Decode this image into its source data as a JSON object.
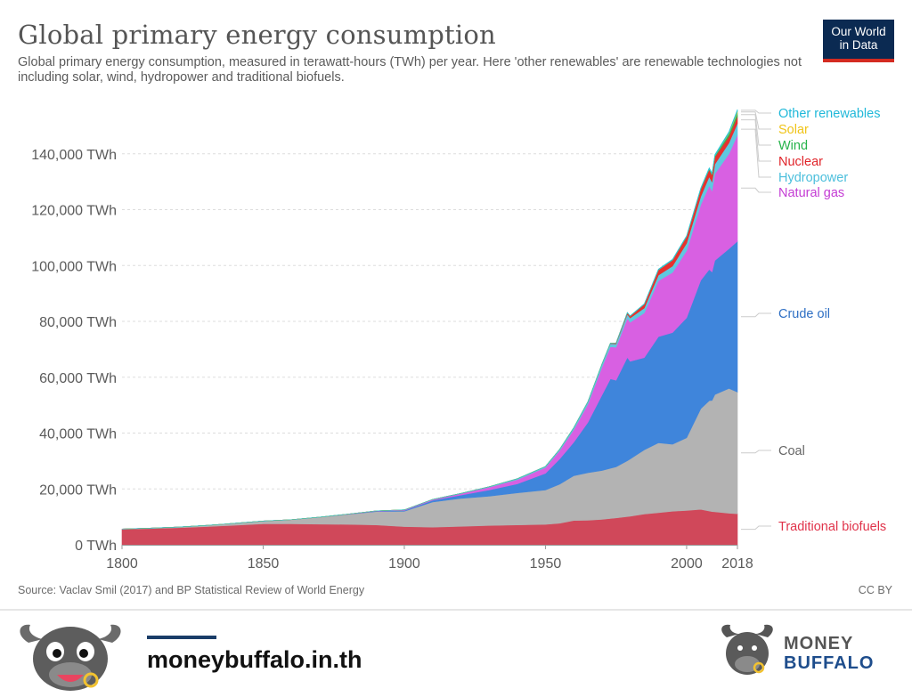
{
  "chart": {
    "title": "Global primary energy consumption",
    "subtitle": "Global primary energy consumption, measured in terawatt-hours (TWh) per year. Here 'other renewables' are renewable technologies not including solar, wind, hydropower and traditional biofuels.",
    "source": "Source: Vaclav Smil (2017) and BP Statistical Review of World Energy",
    "license": "CC BY"
  },
  "logo": {
    "line1": "Our World",
    "line2": "in Data",
    "bg": "#0b2a52",
    "accent": "#d42b21"
  },
  "footer": {
    "url": "moneybuffalo.in.th",
    "brand_top": "MONEY",
    "brand_bottom": "BUFFALO",
    "mascot_icon": "buffalo-mascot-icon",
    "accent": "#1a3d68"
  },
  "chart_data": {
    "type": "area",
    "stacked": true,
    "title": "Global primary energy consumption",
    "xlabel": "",
    "ylabel": "",
    "x_ticks": [
      "1800",
      "1850",
      "1900",
      "1950",
      "2000",
      "2018"
    ],
    "y_ticks": [
      "0 TWh",
      "20,000 TWh",
      "40,000 TWh",
      "60,000 TWh",
      "80,000 TWh",
      "100,000 TWh",
      "120,000 TWh",
      "140,000 TWh"
    ],
    "xlim": [
      1800,
      2018
    ],
    "ylim": [
      0,
      160000
    ],
    "gridlines": "horizontal dashed",
    "legend_placement": "right, labels at series ends",
    "x": [
      1800,
      1810,
      1820,
      1830,
      1840,
      1850,
      1860,
      1870,
      1880,
      1890,
      1900,
      1910,
      1920,
      1930,
      1940,
      1950,
      1955,
      1960,
      1965,
      1970,
      1973,
      1975,
      1979,
      1980,
      1985,
      1990,
      1995,
      2000,
      2005,
      2008,
      2009,
      2010,
      2015,
      2018
    ],
    "series": [
      {
        "name": "Traditional biofuels",
        "color": "#d0485a",
        "label_color": "#e0334a",
        "values": [
          5556,
          5800,
          6100,
          6500,
          7000,
          7500,
          7500,
          7400,
          7300,
          7100,
          6500,
          6300,
          6600,
          6900,
          7100,
          7300,
          7700,
          8700,
          8800,
          9100,
          9400,
          9600,
          10100,
          10200,
          11000,
          11500,
          12000,
          12300,
          12700,
          12100,
          11900,
          11800,
          11300,
          11100
        ]
      },
      {
        "name": "Coal",
        "color": "#b3b3b3",
        "label_color": "#666666",
        "values": [
          97,
          150,
          250,
          450,
          700,
          1000,
          1500,
          2500,
          3600,
          4800,
          5500,
          9000,
          10000,
          10500,
          11500,
          12300,
          14000,
          16000,
          17000,
          17500,
          18000,
          18300,
          20000,
          20500,
          23000,
          25000,
          24000,
          26000,
          36000,
          39500,
          39800,
          42000,
          44700,
          43600
        ]
      },
      {
        "name": "Crude oil",
        "color": "#3f85db",
        "label_color": "#2e6fc4",
        "values": [
          0,
          0,
          0,
          0,
          0,
          0,
          0,
          6,
          50,
          150,
          300,
          600,
          1200,
          2200,
          3200,
          6000,
          9000,
          12000,
          18000,
          27000,
          32000,
          31000,
          37000,
          35000,
          33000,
          38000,
          40000,
          43000,
          46000,
          47000,
          46000,
          48000,
          50000,
          54000
        ]
      },
      {
        "name": "Natural gas",
        "color": "#d860e2",
        "label_color": "#c43cd4",
        "values": [
          0,
          0,
          0,
          0,
          0,
          0,
          0,
          0,
          50,
          100,
          200,
          300,
          500,
          1000,
          1500,
          2100,
          3000,
          4500,
          6500,
          10000,
          11500,
          11800,
          14000,
          14000,
          16000,
          20000,
          21500,
          24000,
          27000,
          30000,
          29000,
          31000,
          34000,
          38000
        ]
      },
      {
        "name": "Hydropower",
        "color": "#5fc8e0",
        "label_color": "#4cbfdc",
        "values": [
          0,
          0,
          0,
          0,
          0,
          0,
          0,
          0,
          0,
          0,
          15,
          50,
          100,
          200,
          350,
          350,
          450,
          690,
          850,
          1050,
          1150,
          1250,
          1450,
          1500,
          1750,
          2050,
          2300,
          2650,
          2950,
          3200,
          3250,
          3450,
          3900,
          4200
        ]
      },
      {
        "name": "Nuclear",
        "color": "#e8302e",
        "label_color": "#e0242a",
        "values": [
          0,
          0,
          0,
          0,
          0,
          0,
          0,
          0,
          0,
          0,
          0,
          0,
          0,
          0,
          0,
          0,
          0,
          0,
          20,
          60,
          150,
          300,
          550,
          700,
          1400,
          1900,
          2150,
          2400,
          2650,
          2550,
          2500,
          2600,
          2400,
          2500
        ]
      },
      {
        "name": "Wind",
        "color": "#2fb657",
        "label_color": "#25b34a",
        "values": [
          0,
          0,
          0,
          0,
          0,
          0,
          0,
          0,
          0,
          0,
          0,
          0,
          0,
          0,
          0,
          0,
          0,
          0,
          0,
          0,
          0,
          0,
          0,
          0,
          0,
          4,
          8,
          30,
          100,
          220,
          280,
          340,
          830,
          1270
        ]
      },
      {
        "name": "Solar",
        "color": "#e7c728",
        "label_color": "#f0c419",
        "values": [
          0,
          0,
          0,
          0,
          0,
          0,
          0,
          0,
          0,
          0,
          0,
          0,
          0,
          0,
          0,
          0,
          0,
          0,
          0,
          0,
          0,
          0,
          0,
          0,
          0,
          0,
          0,
          1,
          4,
          13,
          20,
          30,
          250,
          580
        ]
      },
      {
        "name": "Other renewables",
        "color": "#27c6d6",
        "label_color": "#1fb8d9",
        "values": [
          0,
          0,
          0,
          0,
          0,
          0,
          0,
          0,
          0,
          0,
          0,
          0,
          0,
          0,
          0,
          0,
          0,
          0,
          0,
          0,
          0,
          0,
          80,
          100,
          150,
          230,
          280,
          300,
          350,
          400,
          420,
          450,
          550,
          620
        ]
      }
    ]
  }
}
